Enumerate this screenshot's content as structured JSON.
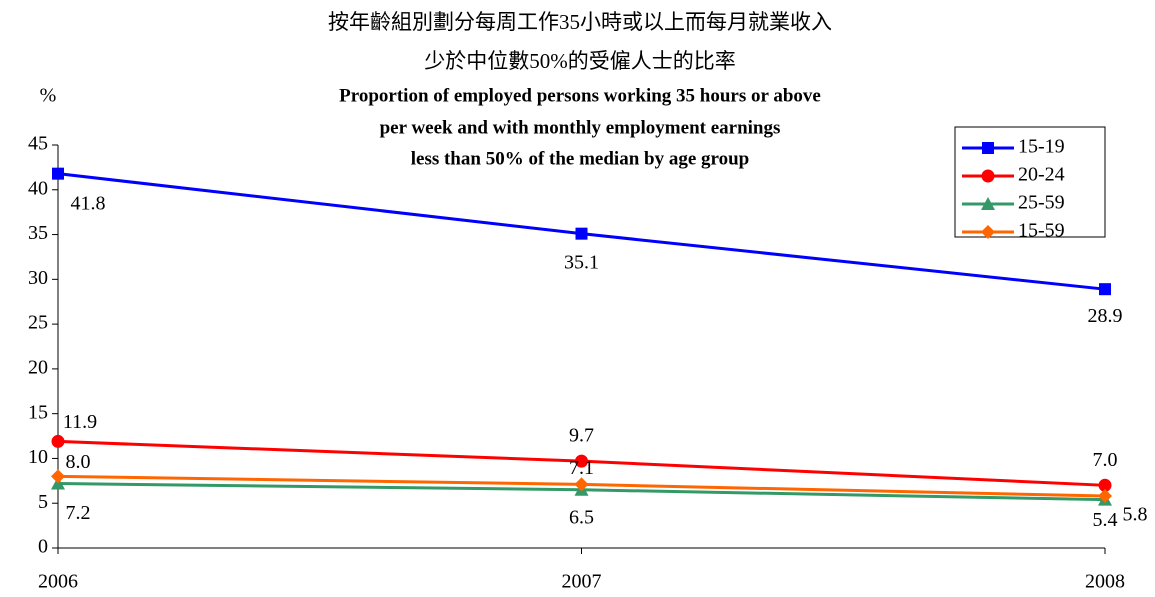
{
  "chart_data": {
    "type": "line",
    "title": [
      "按年齡組別劃分每周工作35小時或以上而每月就業收入",
      "少於中位數50%的受僱人士的比率"
    ],
    "subtitle": [
      "Proportion of employed persons working 35 hours or above",
      "per week and with monthly employment earnings",
      "less than 50% of the median by age group"
    ],
    "y_label": "%",
    "categories": [
      "2006",
      "2007",
      "2008"
    ],
    "series": [
      {
        "name": "15-19",
        "color": "#0000ff",
        "marker": "square",
        "values": [
          41.8,
          35.1,
          28.9
        ],
        "value_labels": [
          "41.8",
          "35.1",
          "28.9"
        ]
      },
      {
        "name": "20-24",
        "color": "#ff0000",
        "marker": "circle",
        "values": [
          11.9,
          9.7,
          7
        ],
        "value_labels": [
          "11.9",
          "9.7",
          "7.0"
        ]
      },
      {
        "name": "25-59",
        "color": "#339966",
        "marker": "triangle",
        "values": [
          7.2,
          6.5,
          5.4
        ],
        "value_labels": [
          "7.2",
          "6.5",
          "5.4"
        ]
      },
      {
        "name": "15-59",
        "color": "#ff6600",
        "marker": "diamond",
        "values": [
          8,
          7.1,
          5.8
        ],
        "value_labels": [
          "8.0",
          "7.1",
          "5.8"
        ]
      }
    ],
    "ylim": [
      0,
      45
    ],
    "yticks": [
      0,
      5,
      10,
      15,
      20,
      25,
      30,
      35,
      40,
      45
    ],
    "legend": "upper right"
  }
}
